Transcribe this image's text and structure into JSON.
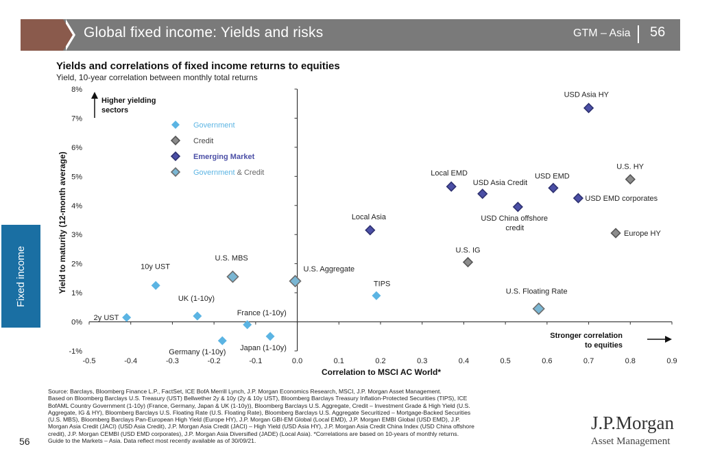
{
  "header": {
    "title": "Global fixed income: Yields and risks",
    "section": "GTM – Asia",
    "page": "56"
  },
  "side_tab": {
    "label": "Fixed income"
  },
  "page_number": "56",
  "logo": {
    "name": "J.P.Morgan",
    "sub": "Asset Management"
  },
  "colors": {
    "government": "#5bb4e3",
    "credit": "#8c8c8c",
    "emerging_market": "#4b4fa6",
    "gov_credit_fill": "#7ab6d3",
    "gov_credit_border": "#6c6c6c",
    "header_bar": "#7a7a7a",
    "header_accent": "#8a5a4c",
    "side_tab": "#1a6fa3"
  },
  "chart_data": {
    "type": "scatter",
    "title": "Yields and correlations of fixed income returns to equities",
    "subtitle": "Yield, 10-year correlation between monthly total returns",
    "xlabel": "Correlation to MSCI AC World*",
    "ylabel": "Yield to maturity (12-month average)",
    "xlim": [
      -0.5,
      0.9
    ],
    "ylim": [
      -1,
      8
    ],
    "x_ticks": [
      "-0.5",
      "-0.4",
      "-0.3",
      "-0.2",
      "-0.1",
      "0.0",
      "0.1",
      "0.2",
      "0.3",
      "0.4",
      "0.5",
      "0.6",
      "0.7",
      "0.8",
      "0.9"
    ],
    "y_ticks": [
      "-1%",
      "0%",
      "1%",
      "2%",
      "3%",
      "4%",
      "5%",
      "6%",
      "7%",
      "8%"
    ],
    "annotations": {
      "higher_line1": "Higher yielding",
      "higher_line2": "sectors",
      "stronger_line1": "Stronger correlation",
      "stronger_line2": "to equities"
    },
    "legend": [
      {
        "name": "Government",
        "category": "gov"
      },
      {
        "name": "Credit",
        "category": "credit"
      },
      {
        "name": "Emerging Market",
        "category": "em"
      },
      {
        "name_gov": "Government",
        "name_sep": " & ",
        "name_credit": "Credit",
        "category": "govcredit"
      }
    ],
    "points": [
      {
        "label": "2y UST",
        "x": -0.41,
        "y": 0.15,
        "category": "gov"
      },
      {
        "label": "10y UST",
        "x": -0.34,
        "y": 1.25,
        "category": "gov"
      },
      {
        "label": "UK (1-10y)",
        "x": -0.24,
        "y": 0.2,
        "category": "gov"
      },
      {
        "label": "Germany (1-10y)",
        "x": -0.18,
        "y": -0.65,
        "category": "gov"
      },
      {
        "label": "France (1-10y)",
        "x": -0.12,
        "y": -0.1,
        "category": "gov"
      },
      {
        "label": "Japan (1-10y)",
        "x": -0.065,
        "y": -0.5,
        "category": "gov"
      },
      {
        "label": "U.S. MBS",
        "x": -0.155,
        "y": 1.55,
        "category": "govcredit"
      },
      {
        "label": "U.S. Aggregate",
        "x": -0.005,
        "y": 1.4,
        "category": "govcredit"
      },
      {
        "label": "TIPS",
        "x": 0.19,
        "y": 0.9,
        "category": "gov"
      },
      {
        "label": "Local Asia",
        "x": 0.175,
        "y": 3.15,
        "category": "em"
      },
      {
        "label": "U.S. IG",
        "x": 0.41,
        "y": 2.05,
        "category": "credit"
      },
      {
        "label": "U.S. Floating Rate",
        "x": 0.58,
        "y": 0.45,
        "category": "govcredit"
      },
      {
        "label": "Local EMD",
        "x": 0.37,
        "y": 4.65,
        "category": "em"
      },
      {
        "label": "USD Asia Credit",
        "x": 0.445,
        "y": 4.4,
        "category": "em"
      },
      {
        "label": "USD EMD",
        "x": 0.615,
        "y": 4.6,
        "category": "em"
      },
      {
        "label": "USD China offshore credit",
        "x": 0.53,
        "y": 3.95,
        "category": "em"
      },
      {
        "label": "USD EMD corporates",
        "x": 0.675,
        "y": 4.25,
        "category": "em"
      },
      {
        "label": "U.S. HY",
        "x": 0.8,
        "y": 4.9,
        "category": "credit"
      },
      {
        "label": "Europe HY",
        "x": 0.765,
        "y": 3.05,
        "category": "credit"
      },
      {
        "label": "USD Asia HY",
        "x": 0.7,
        "y": 7.35,
        "category": "em"
      }
    ]
  },
  "footnote": {
    "lines": [
      "Source: Barclays, Bloomberg Finance L.P., FactSet, ICE BofA Merrill Lynch, J.P. Morgan Economics Research, MSCI, J.P. Morgan Asset Management.",
      "Based on Bloomberg Barclays U.S. Treasury (UST) Bellwether 2y & 10y (2y & 10y UST), Bloomberg Barclays Treasury Inflation-Protected Securities (TIPS), ICE",
      "BofAML Country Government (1-10y) (France, Germany, Japan & UK (1-10y)), Bloomberg Barclays U.S. Aggregate, Credit – Investment Grade & High Yield (U.S.",
      "Aggregate, IG & HY), Bloomberg Barclays U.S. Floating Rate (U.S. Floating Rate), Bloomberg Barclays U.S. Aggregate Securitized – Mortgage-Backed Securities",
      "(U.S. MBS), Bloomberg Barclays Pan-European High Yield (Europe HY), J.P. Morgan GBI-EM Global (Local EMD), J.P. Morgan EMBI Global (USD EMD), J.P.",
      "Morgan Asia Credit (JACI) (USD Asia Credit), J.P. Morgan Asia Credit (JACI) – High Yield (USD Asia HY), J.P. Morgan Asia Credit China Index (USD China offshore",
      "credit), J.P. Morgan CEMBI (USD EMD corporates), J.P. Morgan Asia Diversified (JADE) (Local Asia). *Correlations are based on 10-years of monthly returns.",
      "Guide to the Markets – Asia. Data reflect most recently available as of 30/09/21."
    ]
  }
}
